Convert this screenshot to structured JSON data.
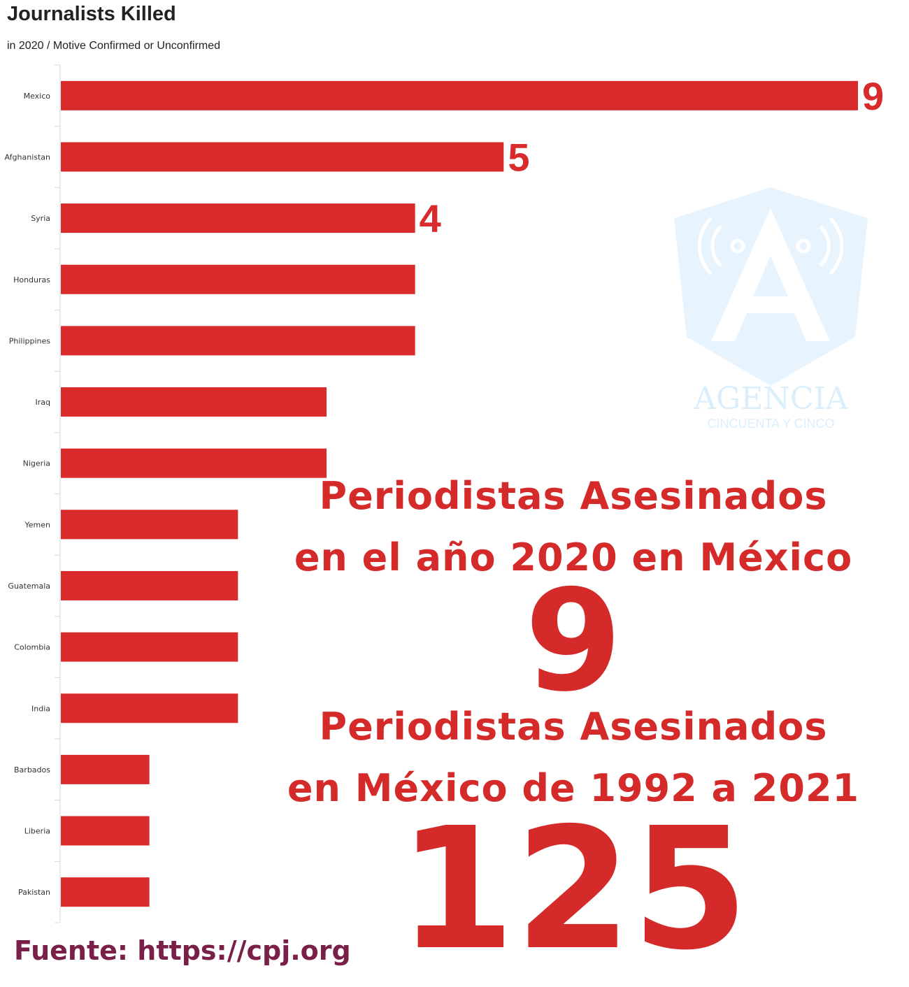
{
  "chart_data": {
    "type": "bar",
    "orientation": "horizontal",
    "title": "Journalists Killed",
    "subtitle": "in 2020 / Motive Confirmed or Unconfirmed",
    "categories": [
      "Mexico",
      "Afghanistan",
      "Syria",
      "Honduras",
      "Philippines",
      "Iraq",
      "Nigeria",
      "Yemen",
      "Guatemala",
      "Colombia",
      "India",
      "Barbados",
      "Liberia",
      "Pakistan"
    ],
    "values": [
      9,
      5,
      4,
      4,
      4,
      3,
      3,
      2,
      2,
      2,
      2,
      1,
      1,
      1
    ],
    "data_labels": [
      "9",
      "5",
      "4",
      "",
      "",
      "",
      "",
      "",
      "",
      "",
      "",
      "",
      "",
      ""
    ],
    "xlim": [
      0,
      9
    ],
    "grid": false,
    "bar_color": "#d92b2b"
  },
  "overlay": {
    "line1": "Periodistas Asesinados",
    "line2": "en el año 2020 en México",
    "big1": "9",
    "line3": "Periodistas Asesinados",
    "line4": "en México de 1992 a 2021",
    "big2": "125"
  },
  "source": "Fuente: https://cpj.org",
  "watermark": {
    "name": "AGENCIA",
    "sub": "CINCUENTA Y CINCO"
  },
  "colors": {
    "overlay_text": "#d42a2a",
    "source_text": "#7a1f47",
    "watermark": "#dbeefb"
  }
}
